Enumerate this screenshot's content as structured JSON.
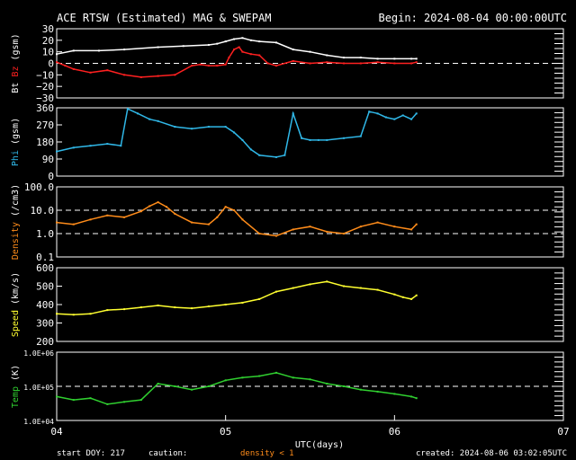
{
  "title": "ACE RTSW (Estimated) MAG & SWEPAM",
  "begin": "Begin: 2024-08-04 00:00:00UTC",
  "footer": {
    "start_doy": "start DOY: 217",
    "caution": "caution:",
    "density_note": "density < 1",
    "created": "created: 2024-08-06 03:02:05UTC",
    "xlabel": "UTC(days)"
  },
  "colors": {
    "background": "#000000",
    "axes": "#ffffff",
    "bt": "#ffffff",
    "bz": "#ff2020",
    "phi": "#30b8e8",
    "density": "#ff8c1a",
    "speed": "#ffff30",
    "temp": "#30d030"
  },
  "chart_data": [
    {
      "id": "mag",
      "type": "line",
      "ylabel_parts": [
        "Bt",
        "Bz",
        "(gsm)"
      ],
      "ylim": [
        -30,
        30
      ],
      "yscale": "linear",
      "ticks": [
        "30",
        "20",
        "10",
        "0",
        "−10",
        "−20",
        "−30"
      ],
      "tick_values": [
        30,
        20,
        10,
        0,
        -10,
        -20,
        -30
      ],
      "ref_lines": [
        0
      ],
      "series": [
        {
          "key": "bt",
          "x": [
            0,
            0.1,
            0.25,
            0.4,
            0.6,
            0.75,
            0.9,
            0.95,
            1.0,
            1.05,
            1.1,
            1.15,
            1.2,
            1.3,
            1.4,
            1.5,
            1.6,
            1.7,
            1.8,
            1.9,
            2.0,
            2.1,
            2.13
          ],
          "y": [
            8,
            11,
            11,
            12,
            14,
            15,
            16,
            17,
            19,
            21,
            22,
            20,
            19,
            18,
            12,
            10,
            7,
            5,
            5,
            4,
            4,
            4,
            4
          ]
        },
        {
          "key": "bz",
          "x": [
            0,
            0.05,
            0.1,
            0.2,
            0.3,
            0.4,
            0.5,
            0.6,
            0.7,
            0.8,
            0.85,
            0.9,
            0.95,
            1.0,
            1.02,
            1.05,
            1.08,
            1.1,
            1.15,
            1.2,
            1.25,
            1.3,
            1.4,
            1.5,
            1.6,
            1.7,
            1.8,
            1.9,
            2.0,
            2.1,
            2.13
          ],
          "y": [
            1,
            -2,
            -5,
            -8,
            -6,
            -10,
            -12,
            -11,
            -10,
            -2,
            -1,
            -2,
            -2,
            -1,
            5,
            12,
            14,
            10,
            8,
            7,
            0,
            -2,
            2,
            0,
            1,
            0,
            0,
            1,
            0,
            0,
            1
          ]
        }
      ]
    },
    {
      "id": "phi",
      "type": "line",
      "ylabel_parts": [
        "Phi",
        "(gsm)"
      ],
      "ylim": [
        0,
        360
      ],
      "yscale": "linear",
      "ticks": [
        "360",
        "270",
        "180",
        "90",
        "0"
      ],
      "tick_values": [
        360,
        270,
        180,
        90,
        0
      ],
      "ref_lines": [],
      "series": [
        {
          "key": "phi",
          "x": [
            0,
            0.1,
            0.2,
            0.3,
            0.38,
            0.42,
            0.48,
            0.55,
            0.6,
            0.7,
            0.8,
            0.9,
            1.0,
            1.05,
            1.1,
            1.15,
            1.2,
            1.3,
            1.35,
            1.4,
            1.45,
            1.5,
            1.55,
            1.6,
            1.7,
            1.8,
            1.85,
            1.9,
            1.95,
            2.0,
            2.05,
            2.1,
            2.13
          ],
          "y": [
            130,
            150,
            160,
            170,
            160,
            355,
            330,
            300,
            290,
            260,
            250,
            260,
            260,
            230,
            190,
            140,
            110,
            100,
            110,
            330,
            200,
            190,
            190,
            190,
            200,
            210,
            340,
            330,
            310,
            300,
            320,
            300,
            330
          ]
        }
      ]
    },
    {
      "id": "density",
      "type": "line",
      "ylabel_parts": [
        "Density",
        "(/cm3)"
      ],
      "ylim": [
        0.1,
        100
      ],
      "yscale": "log",
      "ticks": [
        "100.0",
        "10.0",
        "1.0",
        "0.1"
      ],
      "tick_values": [
        100,
        10,
        1,
        0.1
      ],
      "ref_lines": [
        1,
        10
      ],
      "series": [
        {
          "key": "density",
          "x": [
            0,
            0.1,
            0.2,
            0.3,
            0.4,
            0.5,
            0.55,
            0.6,
            0.65,
            0.7,
            0.8,
            0.9,
            0.95,
            1.0,
            1.05,
            1.1,
            1.2,
            1.3,
            1.4,
            1.5,
            1.6,
            1.7,
            1.8,
            1.9,
            2.0,
            2.1,
            2.13
          ],
          "y": [
            3,
            2.5,
            4,
            6,
            5,
            9,
            15,
            22,
            14,
            7,
            3,
            2.5,
            5,
            14,
            10,
            4,
            1,
            0.8,
            1.5,
            2,
            1.2,
            1.0,
            2,
            3,
            2,
            1.5,
            2.5
          ]
        }
      ]
    },
    {
      "id": "speed",
      "type": "line",
      "ylabel_parts": [
        "Speed",
        "(km/s)"
      ],
      "ylim": [
        200,
        600
      ],
      "yscale": "linear",
      "ticks": [
        "600",
        "500",
        "400",
        "300",
        "200"
      ],
      "tick_values": [
        600,
        500,
        400,
        300,
        200
      ],
      "ref_lines": [],
      "series": [
        {
          "key": "speed",
          "x": [
            0,
            0.1,
            0.2,
            0.3,
            0.4,
            0.5,
            0.6,
            0.7,
            0.8,
            0.9,
            1.0,
            1.1,
            1.2,
            1.3,
            1.4,
            1.5,
            1.6,
            1.7,
            1.8,
            1.9,
            2.0,
            2.05,
            2.1,
            2.13
          ],
          "y": [
            350,
            345,
            350,
            370,
            375,
            385,
            395,
            385,
            380,
            390,
            400,
            410,
            430,
            470,
            490,
            510,
            525,
            500,
            490,
            480,
            455,
            440,
            430,
            450
          ]
        }
      ]
    },
    {
      "id": "temp",
      "type": "line",
      "ylabel_parts": [
        "Temp",
        "(K)"
      ],
      "ylim": [
        10000,
        1000000
      ],
      "yscale": "log",
      "ticks": [
        "1.0E+06",
        "1.0E+05",
        "1.0E+04"
      ],
      "tick_values": [
        1000000,
        100000,
        10000
      ],
      "ref_lines": [
        100000
      ],
      "series": [
        {
          "key": "temp",
          "x": [
            0,
            0.1,
            0.2,
            0.3,
            0.4,
            0.5,
            0.6,
            0.7,
            0.8,
            0.9,
            1.0,
            1.1,
            1.2,
            1.3,
            1.4,
            1.5,
            1.6,
            1.7,
            1.8,
            1.9,
            2.0,
            2.1,
            2.13
          ],
          "y": [
            50000,
            40000,
            45000,
            30000,
            35000,
            40000,
            120000,
            100000,
            80000,
            100000,
            150000,
            180000,
            200000,
            250000,
            180000,
            160000,
            120000,
            100000,
            80000,
            70000,
            60000,
            50000,
            45000
          ]
        }
      ]
    }
  ],
  "xaxis": {
    "xlim": [
      0,
      3
    ],
    "ticks": [
      {
        "v": 0,
        "label": "04"
      },
      {
        "v": 1,
        "label": "05"
      },
      {
        "v": 2,
        "label": "06"
      },
      {
        "v": 3,
        "label": "07"
      }
    ]
  }
}
